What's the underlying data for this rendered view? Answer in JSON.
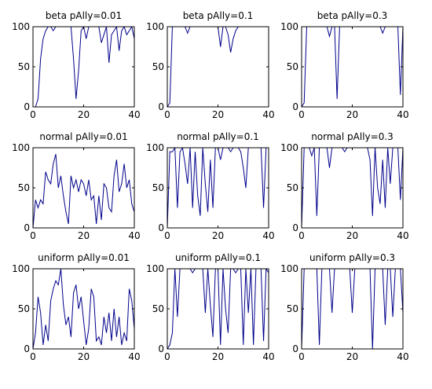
{
  "colors": {
    "line": "#00008b",
    "axis": "#000000",
    "background": "#ffffff"
  },
  "chart_data": [
    {
      "type": "line",
      "title": "beta pAlly=0.01",
      "xlim": [
        0,
        40
      ],
      "ylim": [
        0,
        100
      ],
      "xticks": [
        "0",
        "20",
        "40"
      ],
      "yticks": [
        "0",
        "50",
        "100"
      ],
      "grid": false,
      "x": [
        0,
        1,
        2,
        3,
        4,
        5,
        6,
        7,
        8,
        9,
        10,
        11,
        12,
        13,
        14,
        15,
        16,
        17,
        18,
        19,
        20,
        21,
        22,
        23,
        24,
        25,
        26,
        27,
        28,
        29,
        30,
        31,
        32,
        33,
        34,
        35,
        36,
        37,
        38,
        39,
        40
      ],
      "series": [
        {
          "values": [
            0,
            0,
            10,
            60,
            85,
            95,
            100,
            100,
            95,
            100,
            100,
            100,
            100,
            100,
            100,
            100,
            60,
            10,
            45,
            95,
            100,
            85,
            100,
            100,
            100,
            100,
            100,
            80,
            90,
            100,
            55,
            90,
            95,
            100,
            70,
            95,
            100,
            90,
            95,
            100,
            85
          ]
        }
      ]
    },
    {
      "type": "line",
      "title": "beta pAlly=0.1",
      "xlim": [
        0,
        40
      ],
      "ylim": [
        0,
        100
      ],
      "xticks": [
        "0",
        "20",
        "40"
      ],
      "yticks": [
        "0",
        "50",
        "100"
      ],
      "grid": false,
      "x": [
        0,
        1,
        2,
        3,
        4,
        5,
        6,
        7,
        8,
        9,
        10,
        11,
        12,
        13,
        14,
        15,
        16,
        17,
        18,
        19,
        20,
        21,
        22,
        23,
        24,
        25,
        26,
        27,
        28,
        29,
        30,
        31,
        32,
        33,
        34,
        35,
        36,
        37,
        38,
        39,
        40
      ],
      "series": [
        {
          "values": [
            0,
            5,
            100,
            100,
            100,
            100,
            100,
            100,
            92,
            100,
            100,
            100,
            100,
            100,
            100,
            100,
            100,
            100,
            100,
            100,
            100,
            75,
            100,
            100,
            90,
            68,
            85,
            95,
            100,
            100,
            100,
            100,
            100,
            100,
            100,
            100,
            100,
            100,
            100,
            100,
            100
          ]
        }
      ]
    },
    {
      "type": "line",
      "title": "beta pAlly=0.3",
      "xlim": [
        0,
        40
      ],
      "ylim": [
        0,
        100
      ],
      "xticks": [
        "0",
        "20",
        "40"
      ],
      "yticks": [
        "0",
        "50",
        "100"
      ],
      "grid": false,
      "x": [
        0,
        1,
        2,
        3,
        4,
        5,
        6,
        7,
        8,
        9,
        10,
        11,
        12,
        13,
        14,
        15,
        16,
        17,
        18,
        19,
        20,
        21,
        22,
        23,
        24,
        25,
        26,
        27,
        28,
        29,
        30,
        31,
        32,
        33,
        34,
        35,
        36,
        37,
        38,
        39,
        40
      ],
      "series": [
        {
          "values": [
            0,
            5,
            100,
            100,
            100,
            100,
            100,
            100,
            100,
            100,
            100,
            88,
            100,
            100,
            10,
            100,
            100,
            100,
            100,
            100,
            100,
            100,
            100,
            100,
            100,
            100,
            100,
            100,
            100,
            100,
            100,
            100,
            92,
            100,
            100,
            100,
            100,
            100,
            100,
            15,
            100
          ]
        }
      ]
    },
    {
      "type": "line",
      "title": "normal pAlly=0.01",
      "xlim": [
        0,
        40
      ],
      "ylim": [
        0,
        100
      ],
      "xticks": [
        "0",
        "20",
        "40"
      ],
      "yticks": [
        "0",
        "50",
        "100"
      ],
      "grid": false,
      "x": [
        0,
        1,
        2,
        3,
        4,
        5,
        6,
        7,
        8,
        9,
        10,
        11,
        12,
        13,
        14,
        15,
        16,
        17,
        18,
        19,
        20,
        21,
        22,
        23,
        24,
        25,
        26,
        27,
        28,
        29,
        30,
        31,
        32,
        33,
        34,
        35,
        36,
        37,
        38,
        39,
        40
      ],
      "series": [
        {
          "values": [
            0,
            35,
            25,
            35,
            30,
            70,
            60,
            55,
            80,
            92,
            50,
            65,
            40,
            20,
            5,
            65,
            50,
            60,
            45,
            60,
            55,
            40,
            60,
            35,
            40,
            5,
            40,
            10,
            55,
            50,
            25,
            20,
            65,
            85,
            45,
            55,
            80,
            50,
            60,
            30,
            20
          ]
        }
      ]
    },
    {
      "type": "line",
      "title": "normal pAlly=0.1",
      "xlim": [
        0,
        40
      ],
      "ylim": [
        0,
        100
      ],
      "xticks": [
        "0",
        "20",
        "40"
      ],
      "yticks": [
        "0",
        "50",
        "100"
      ],
      "grid": false,
      "x": [
        0,
        1,
        2,
        3,
        4,
        5,
        6,
        7,
        8,
        9,
        10,
        11,
        12,
        13,
        14,
        15,
        16,
        17,
        18,
        19,
        20,
        21,
        22,
        23,
        24,
        25,
        26,
        27,
        28,
        29,
        30,
        31,
        32,
        33,
        34,
        35,
        36,
        37,
        38,
        39,
        40
      ],
      "series": [
        {
          "values": [
            0,
            95,
            95,
            100,
            25,
            95,
            100,
            80,
            55,
            100,
            25,
            95,
            40,
            15,
            100,
            55,
            20,
            85,
            25,
            100,
            100,
            85,
            100,
            100,
            100,
            95,
            100,
            100,
            100,
            95,
            75,
            50,
            100,
            100,
            100,
            100,
            100,
            100,
            25,
            100,
            100
          ]
        }
      ]
    },
    {
      "type": "line",
      "title": "normal pAlly=0.3",
      "xlim": [
        0,
        40
      ],
      "ylim": [
        0,
        100
      ],
      "xticks": [
        "0",
        "20",
        "40"
      ],
      "yticks": [
        "0",
        "50",
        "100"
      ],
      "grid": false,
      "x": [
        0,
        1,
        2,
        3,
        4,
        5,
        6,
        7,
        8,
        9,
        10,
        11,
        12,
        13,
        14,
        15,
        16,
        17,
        18,
        19,
        20,
        21,
        22,
        23,
        24,
        25,
        26,
        27,
        28,
        29,
        30,
        31,
        32,
        33,
        34,
        35,
        36,
        37,
        38,
        39,
        40
      ],
      "series": [
        {
          "values": [
            0,
            100,
            100,
            100,
            90,
            100,
            15,
            100,
            100,
            100,
            100,
            75,
            100,
            100,
            100,
            100,
            100,
            95,
            100,
            100,
            100,
            100,
            100,
            100,
            100,
            100,
            100,
            85,
            15,
            100,
            50,
            30,
            85,
            25,
            100,
            55,
            100,
            100,
            100,
            35,
            100
          ]
        }
      ]
    },
    {
      "type": "line",
      "title": "uniform pAlly=0.01",
      "xlim": [
        0,
        40
      ],
      "ylim": [
        0,
        100
      ],
      "xticks": [
        "0",
        "20",
        "40"
      ],
      "yticks": [
        "0",
        "50",
        "100"
      ],
      "grid": false,
      "x": [
        0,
        1,
        2,
        3,
        4,
        5,
        6,
        7,
        8,
        9,
        10,
        11,
        12,
        13,
        14,
        15,
        16,
        17,
        18,
        19,
        20,
        21,
        22,
        23,
        24,
        25,
        26,
        27,
        28,
        29,
        30,
        31,
        32,
        33,
        34,
        35,
        36,
        37,
        38,
        39,
        40
      ],
      "series": [
        {
          "values": [
            0,
            20,
            65,
            45,
            5,
            30,
            10,
            60,
            75,
            85,
            80,
            100,
            55,
            30,
            40,
            15,
            70,
            80,
            50,
            65,
            35,
            5,
            25,
            75,
            65,
            10,
            15,
            5,
            40,
            20,
            45,
            10,
            50,
            15,
            40,
            5,
            20,
            10,
            75,
            60,
            25
          ]
        }
      ]
    },
    {
      "type": "line",
      "title": "uniform pAlly=0.1",
      "xlim": [
        0,
        40
      ],
      "ylim": [
        0,
        100
      ],
      "xticks": [
        "0",
        "20",
        "40"
      ],
      "yticks": [
        "0",
        "50",
        "100"
      ],
      "grid": false,
      "x": [
        0,
        1,
        2,
        3,
        4,
        5,
        6,
        7,
        8,
        9,
        10,
        11,
        12,
        13,
        14,
        15,
        16,
        17,
        18,
        19,
        20,
        21,
        22,
        23,
        24,
        25,
        26,
        27,
        28,
        29,
        30,
        31,
        32,
        33,
        34,
        35,
        36,
        37,
        38,
        39,
        40
      ],
      "series": [
        {
          "values": [
            0,
            5,
            20,
            100,
            40,
            100,
            100,
            100,
            100,
            100,
            95,
            100,
            100,
            100,
            100,
            45,
            100,
            55,
            15,
            100,
            100,
            5,
            100,
            50,
            20,
            100,
            100,
            95,
            100,
            100,
            5,
            100,
            45,
            100,
            5,
            100,
            100,
            100,
            10,
            100,
            95
          ]
        }
      ]
    },
    {
      "type": "line",
      "title": "uniform pAlly=0.3",
      "xlim": [
        0,
        40
      ],
      "ylim": [
        0,
        100
      ],
      "xticks": [
        "0",
        "20",
        "40"
      ],
      "yticks": [
        "0",
        "50",
        "100"
      ],
      "grid": false,
      "x": [
        0,
        1,
        2,
        3,
        4,
        5,
        6,
        7,
        8,
        9,
        10,
        11,
        12,
        13,
        14,
        15,
        16,
        17,
        18,
        19,
        20,
        21,
        22,
        23,
        24,
        25,
        26,
        27,
        28,
        29,
        30,
        31,
        32,
        33,
        34,
        35,
        36,
        37,
        38,
        39,
        40
      ],
      "series": [
        {
          "values": [
            0,
            100,
            100,
            100,
            100,
            100,
            100,
            5,
            100,
            100,
            100,
            100,
            45,
            100,
            100,
            100,
            100,
            100,
            100,
            100,
            45,
            100,
            100,
            100,
            100,
            100,
            100,
            100,
            0,
            100,
            100,
            100,
            100,
            30,
            100,
            100,
            40,
            100,
            100,
            100,
            45
          ]
        }
      ]
    }
  ]
}
